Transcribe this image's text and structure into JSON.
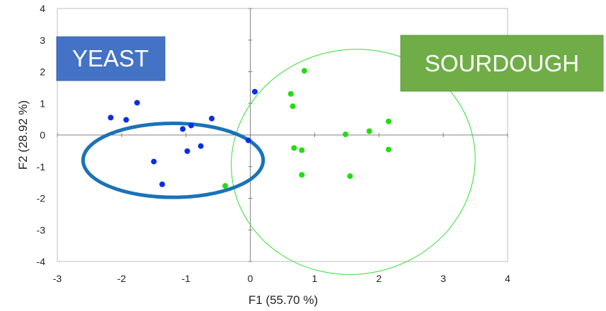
{
  "chart_data": {
    "type": "scatter",
    "title": "",
    "xlabel": "F1 (55.70 %)",
    "ylabel": "F2 (28.92 %)",
    "xlim": [
      -3,
      4
    ],
    "ylim": [
      -4,
      4
    ],
    "x_ticks": [
      "-3",
      "-2",
      "-1",
      "0",
      "1",
      "2",
      "3",
      "4"
    ],
    "y_ticks": [
      "-4",
      "-3",
      "-2",
      "-1",
      "0",
      "1",
      "2",
      "3",
      "4"
    ],
    "grid": false,
    "series": [
      {
        "color": "#0b2fe0",
        "points": [
          {
            "x": -2.17,
            "y": 0.55
          },
          {
            "x": -1.93,
            "y": 0.48
          },
          {
            "x": -1.76,
            "y": 1.02
          },
          {
            "x": -1.05,
            "y": 0.19
          },
          {
            "x": -0.92,
            "y": 0.3
          },
          {
            "x": -0.6,
            "y": 0.52
          },
          {
            "x": -0.77,
            "y": -0.35
          },
          {
            "x": -0.98,
            "y": -0.51
          },
          {
            "x": -1.5,
            "y": -0.84
          },
          {
            "x": -1.37,
            "y": -1.56
          },
          {
            "x": -0.03,
            "y": -0.17
          },
          {
            "x": 0.07,
            "y": 1.37
          }
        ]
      },
      {
        "color": "#22dd11",
        "points": [
          {
            "x": 0.84,
            "y": 2.03
          },
          {
            "x": 0.63,
            "y": 1.3
          },
          {
            "x": 0.66,
            "y": 0.91
          },
          {
            "x": 0.68,
            "y": -0.41
          },
          {
            "x": 0.8,
            "y": -0.48
          },
          {
            "x": 0.8,
            "y": -1.26
          },
          {
            "x": 1.48,
            "y": 0.02
          },
          {
            "x": 1.55,
            "y": -1.3
          },
          {
            "x": 1.85,
            "y": 0.12
          },
          {
            "x": 2.15,
            "y": 0.43
          },
          {
            "x": 2.15,
            "y": -0.46
          },
          {
            "x": -0.39,
            "y": -1.61
          }
        ]
      }
    ],
    "confidence_ellipse": {
      "cx": 1.6,
      "cy": -0.85,
      "rx": 1.9,
      "ry": 3.55,
      "color": "#33dd33"
    },
    "annotations": [
      {
        "text": "YEAST",
        "box_color": "#4472c4"
      },
      {
        "text": "SOURDOUGH",
        "box_color": "#70ad47"
      }
    ],
    "highlight_ellipse": {
      "cx": -1.2,
      "cy": -0.8,
      "rx": 1.4,
      "ry": 1.17,
      "color": "#1a73b8"
    }
  }
}
